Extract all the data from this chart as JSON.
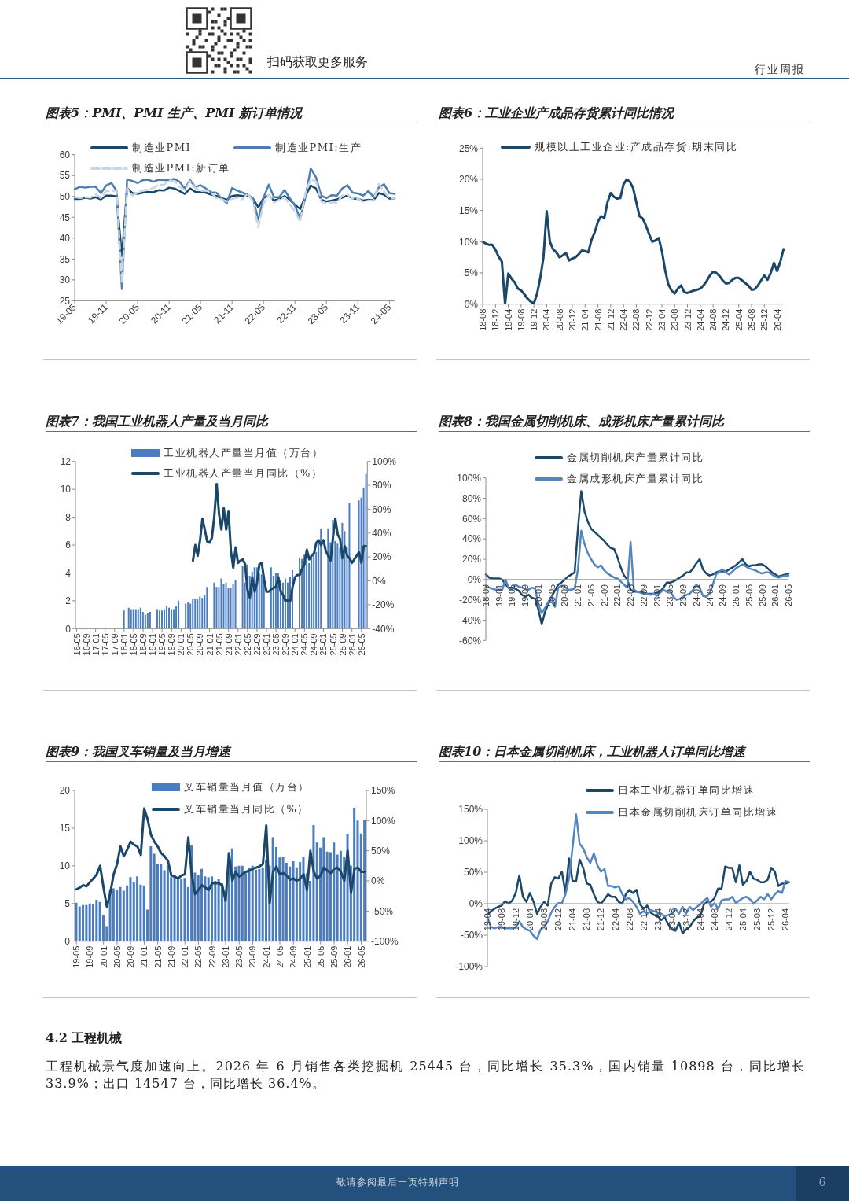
{
  "chart_data": [
    {
      "type": "other",
      "annotations": [
        "扫码获取更多服务",
        "行业周报"
      ]
    },
    {
      "type": "line",
      "title": "图表5：PMI、PMI 生产、PMI 新订单情况",
      "categories": [
        "19-05",
        null,
        null,
        null,
        null,
        null,
        "19-11",
        null,
        null,
        null,
        null,
        null,
        "20-05",
        null,
        null,
        null,
        null,
        null,
        "20-11",
        null,
        null,
        null,
        null,
        null,
        "21-05",
        null,
        null,
        null,
        null,
        null,
        "21-11",
        null,
        null,
        null,
        null,
        null,
        "22-05",
        null,
        null,
        null,
        null,
        null,
        "22-11",
        null,
        null,
        null,
        null,
        null,
        "23-05",
        null,
        null,
        null,
        null,
        null,
        "23-11",
        null,
        null,
        null,
        null,
        null,
        "24-05",
        null
      ],
      "series": [
        {
          "name": "制造业PMI",
          "color": "#1b4769",
          "values": [
            49.4,
            49.4,
            49.7,
            49.5,
            49.8,
            49.3,
            50.2,
            50.2,
            50.0,
            35.7,
            52.0,
            50.8,
            50.6,
            50.9,
            51.1,
            51.0,
            51.5,
            51.4,
            52.1,
            51.9,
            51.3,
            50.6,
            51.9,
            51.1,
            51.0,
            50.9,
            50.4,
            50.1,
            49.6,
            49.2,
            50.1,
            50.3,
            50.1,
            50.2,
            49.5,
            47.4,
            49.6,
            50.2,
            49.0,
            49.4,
            50.1,
            49.2,
            48.0,
            47.0,
            50.1,
            52.6,
            51.9,
            49.2,
            48.8,
            49.0,
            49.3,
            49.7,
            50.2,
            49.5,
            49.4,
            49.0,
            49.2,
            49.1,
            50.8,
            50.4,
            49.5,
            49.5
          ]
        },
        {
          "name": "制造业PMI:生产",
          "color": "#4e7db1",
          "values": [
            51.7,
            52.3,
            52.1,
            52.3,
            52.3,
            50.8,
            52.6,
            53.2,
            51.3,
            27.8,
            54.1,
            53.7,
            53.2,
            53.9,
            54.0,
            53.5,
            54.0,
            53.9,
            53.9,
            54.2,
            53.5,
            51.9,
            53.9,
            52.2,
            52.7,
            51.9,
            51.0,
            50.9,
            49.5,
            48.4,
            52.0,
            51.4,
            50.9,
            50.4,
            49.5,
            44.4,
            49.7,
            52.8,
            49.8,
            49.8,
            51.5,
            49.6,
            47.8,
            44.6,
            49.8,
            56.7,
            54.6,
            50.2,
            49.6,
            50.3,
            50.2,
            51.9,
            52.7,
            50.9,
            50.7,
            50.2,
            51.3,
            49.8,
            52.2,
            52.9,
            50.8,
            50.6
          ]
        },
        {
          "name": "制造业PMI:新订单",
          "color": "#c7d5e4",
          "line_style": "dashed",
          "values": [
            49.8,
            49.6,
            49.8,
            49.7,
            50.5,
            49.6,
            51.3,
            51.2,
            51.4,
            29.3,
            52.0,
            50.2,
            50.9,
            51.4,
            51.7,
            52.0,
            52.8,
            52.8,
            53.9,
            53.6,
            52.3,
            51.5,
            53.6,
            52.0,
            51.3,
            51.5,
            50.9,
            49.6,
            49.3,
            48.8,
            49.4,
            49.7,
            49.3,
            50.7,
            48.8,
            42.6,
            48.2,
            50.4,
            48.5,
            49.2,
            49.8,
            48.1,
            46.4,
            43.9,
            50.9,
            54.1,
            53.6,
            48.8,
            48.3,
            48.6,
            48.5,
            50.2,
            50.5,
            49.5,
            49.4,
            48.7,
            49.0,
            49.0,
            53.0,
            51.1,
            49.6,
            49.5
          ]
        }
      ],
      "ylim": [
        25,
        60
      ],
      "yticks": [
        25,
        30,
        35,
        40,
        45,
        50,
        55,
        60
      ],
      "legend": "top"
    },
    {
      "type": "line",
      "title": "图表6：工业企业产成品存货累计同比情况",
      "categories": [
        "18-08",
        null,
        null,
        null,
        "18-12",
        null,
        null,
        null,
        "19-04",
        null,
        null,
        null,
        "19-08",
        null,
        null,
        null,
        "19-12",
        null,
        null,
        null,
        "20-04",
        null,
        null,
        null,
        "20-08",
        null,
        null,
        null,
        "20-12",
        null,
        null,
        null,
        "21-04",
        null,
        null,
        null,
        "21-08",
        null,
        null,
        null,
        "21-12",
        null,
        null,
        null,
        "22-04",
        null,
        null,
        null,
        "22-08",
        null,
        null,
        null,
        "22-12",
        null,
        null,
        null,
        "23-04",
        null,
        null,
        null,
        "23-08",
        null,
        null,
        null,
        "23-12",
        null,
        null,
        null,
        "24-04",
        null,
        null,
        null,
        "24-08",
        null,
        null,
        null,
        "24-12",
        null,
        null,
        null,
        "25-04",
        null,
        null,
        null,
        "25-08",
        null,
        null,
        null,
        "25-12",
        null,
        null,
        null,
        "26-04",
        null,
        null
      ],
      "series": [
        {
          "name": "规模以上工业企业:产成品存货:期末同比",
          "color": "#1b4769",
          "values": [
            10.0,
            9.7,
            9.5,
            9.5,
            8.7,
            7.6,
            6.8,
            0,
            4.9,
            4.1,
            3.5,
            2.5,
            2.2,
            1.6,
            0.9,
            0.4,
            0.1,
            1.7,
            4.2,
            7.5,
            14.9,
            10.0,
            8.8,
            8.3,
            7.5,
            7.8,
            8.2,
            7.0,
            7.3,
            7.5,
            8.0,
            8.6,
            8.5,
            8.3,
            10.3,
            11.5,
            13.2,
            14.1,
            13.8,
            16.3,
            17.8,
            17.2,
            16.9,
            17.0,
            19.2,
            20.0,
            19.6,
            18.6,
            16.3,
            14.1,
            13.7,
            12.6,
            11.2,
            10.0,
            10.2,
            10.6,
            8.5,
            5.5,
            3.2,
            2.2,
            1.7,
            2.5,
            3.0,
            1.9,
            1.8,
            2.0,
            2.2,
            2.3,
            2.5,
            3.0,
            3.7,
            4.6,
            5.2,
            5.0,
            4.5,
            3.8,
            3.3,
            3.4,
            3.9,
            4.2,
            4.2,
            3.8,
            3.4,
            3.0,
            2.3,
            2.4,
            3.0,
            3.8,
            4.6,
            3.9,
            5.0,
            6.6,
            5.3,
            6.8,
            8.8
          ]
        }
      ],
      "ylim": [
        0,
        25
      ],
      "yticks": [
        {
          "value": 0,
          "label": "0%"
        },
        {
          "value": 5,
          "label": "5%"
        },
        {
          "value": 10,
          "label": "10%"
        },
        {
          "value": 15,
          "label": "15%"
        },
        {
          "value": 20,
          "label": "20%"
        },
        {
          "value": 25,
          "label": "25%"
        }
      ],
      "legend": "top"
    },
    {
      "type": "bar",
      "title": "图表7：我国工业机器人产量及当月同比",
      "categories": [
        "16-05",
        null,
        null,
        null,
        "16-09",
        null,
        null,
        null,
        "17-01",
        null,
        null,
        null,
        "17-05",
        null,
        null,
        null,
        "17-09",
        null,
        null,
        null,
        "18-01",
        null,
        null,
        null,
        "18-05",
        null,
        null,
        null,
        "18-09",
        null,
        null,
        null,
        "19-01",
        null,
        null,
        null,
        "19-05",
        null,
        null,
        null,
        "19-09",
        null,
        null,
        null,
        "20-01",
        null,
        null,
        null,
        "20-05",
        null,
        null,
        null,
        "20-09",
        null,
        null,
        null,
        "21-01",
        null,
        null,
        null,
        "21-05",
        null,
        null,
        null,
        "21-09",
        null,
        null,
        null,
        "22-01",
        null,
        null,
        null,
        "22-05",
        null,
        null,
        null,
        "22-09",
        null,
        null,
        null,
        "23-01",
        null,
        null,
        null,
        "23-05",
        null,
        null,
        null,
        "23-09",
        null,
        null,
        null,
        "24-01",
        null,
        null,
        null,
        "24-05",
        null,
        null,
        null,
        "24-09",
        null,
        null,
        null,
        "25-01",
        null,
        null,
        null,
        "25-05",
        null,
        null,
        null,
        "25-09",
        null,
        null,
        null,
        "26-01",
        null,
        null,
        null,
        "26-05",
        null,
        null
      ],
      "series": [
        {
          "name": "工业机器人产量当月值（万台）",
          "color": "#4a7cbf",
          "values": [
            null,
            null,
            null,
            null,
            null,
            null,
            null,
            null,
            null,
            null,
            null,
            null,
            null,
            null,
            null,
            null,
            null,
            null,
            null,
            null,
            1.3,
            null,
            1.5,
            1.4,
            1.4,
            1.4,
            1.4,
            1.5,
            1.2,
            1.0,
            1.1,
            1.2,
            null,
            null,
            1.4,
            1.3,
            1.3,
            1.4,
            1.6,
            1.5,
            1.4,
            1.4,
            1.6,
            2.0,
            null,
            null,
            1.8,
            1.9,
            1.8,
            2.1,
            2.1,
            2.1,
            2.3,
            2.2,
            2.4,
            3.0,
            null,
            null,
            3.3,
            3.0,
            3.0,
            3.6,
            3.2,
            3.3,
            2.9,
            2.9,
            3.2,
            3.5,
            null,
            null,
            4.5,
            3.3,
            4.6,
            3.8,
            4.1,
            4.4,
            4.4,
            4.0,
            3.9,
            3.8,
            null,
            null,
            4.4,
            3.8,
            4.0,
            4.0,
            3.5,
            3.3,
            3.6,
            3.3,
            3.7,
            4.2,
            null,
            null,
            5.1,
            5.0,
            5.3,
            4.9,
            4.7,
            5.1,
            5.3,
            5.5,
            6.3,
            7.2,
            null,
            null,
            7.2,
            6.2,
            7.8,
            6.3,
            6.1,
            5.8,
            7.6,
            7.0,
            5.9,
            9.0,
            null,
            null,
            null,
            9.2,
            9.4,
            10.1,
            11.1
          ]
        },
        {
          "name": "工业机器人产量当月同比（%）",
          "type": "line",
          "axis": "y2",
          "color": "#1b4769",
          "values": [
            null,
            null,
            null,
            null,
            null,
            null,
            null,
            null,
            null,
            null,
            null,
            null,
            null,
            null,
            null,
            null,
            null,
            null,
            null,
            null,
            null,
            null,
            null,
            null,
            null,
            null,
            null,
            null,
            null,
            null,
            null,
            null,
            null,
            null,
            null,
            null,
            null,
            null,
            null,
            null,
            null,
            null,
            null,
            null,
            null,
            null,
            null,
            null,
            null,
            17,
            30,
            21,
            34,
            52,
            43,
            33,
            32,
            36,
            54,
            81,
            56,
            43,
            61,
            43,
            58,
            25,
            11,
            28,
            15,
            17,
            18,
            14,
            -8,
            -14,
            3,
            -9,
            -2,
            14,
            15,
            1,
            -9,
            -9,
            -7,
            -6,
            -5,
            3,
            -9,
            -12,
            -17,
            -16,
            -17,
            -5,
            3,
            5,
            5,
            10,
            14,
            26,
            18,
            21,
            23,
            32,
            34,
            30,
            34,
            25,
            21,
            17,
            36,
            52,
            39,
            35,
            19,
            29,
            21,
            19,
            15,
            18,
            21,
            24,
            15,
            29,
            29
          ]
        }
      ],
      "ylim": [
        0,
        12
      ],
      "yticks": [
        0,
        2,
        4,
        6,
        8,
        10,
        12
      ],
      "y2lim": [
        -40,
        100
      ],
      "y2ticks": [
        {
          "value": -40,
          "label": "-40%"
        },
        {
          "value": -20,
          "label": "-20%"
        },
        {
          "value": 0,
          "label": "0%"
        },
        {
          "value": 20,
          "label": "20%"
        },
        {
          "value": 40,
          "label": "40%"
        },
        {
          "value": 60,
          "label": "60%"
        },
        {
          "value": 80,
          "label": "80%"
        },
        {
          "value": 100,
          "label": "100%"
        }
      ],
      "legend": "top"
    },
    {
      "type": "line",
      "title": "图表8：我国金属切削机床、成形机床产量累计同比",
      "categories": [
        "18-09",
        null,
        null,
        null,
        "19-01",
        null,
        null,
        null,
        "19-05",
        null,
        null,
        null,
        "19-09",
        null,
        null,
        null,
        "20-01",
        null,
        null,
        null,
        "20-05",
        null,
        null,
        null,
        "20-09",
        null,
        null,
        null,
        "21-01",
        null,
        null,
        null,
        "21-05",
        null,
        null,
        null,
        "21-09",
        null,
        null,
        null,
        "22-01",
        null,
        null,
        null,
        "22-05",
        null,
        null,
        null,
        "22-09",
        null,
        null,
        null,
        "23-01",
        null,
        null,
        null,
        "23-05",
        null,
        null,
        null,
        "23-09",
        null,
        null,
        null,
        "24-01",
        null,
        null,
        null,
        "24-05",
        null,
        null,
        null,
        "24-09",
        null,
        null,
        null,
        "25-01",
        null,
        null,
        null,
        "25-05",
        null,
        null,
        null,
        "25-09",
        null,
        null,
        null,
        "26-01",
        null,
        null,
        null,
        "26-05"
      ],
      "series": [
        {
          "name": "金属切削机床产量累计同比",
          "color": "#1b4769",
          "values": [
            5,
            2,
            1,
            1,
            1,
            0,
            -5,
            -8,
            -8,
            -9,
            -11,
            -15,
            -17,
            -15,
            -18,
            -19,
            -30,
            -44,
            -32,
            -24,
            -17,
            -11,
            -5,
            -3,
            0,
            3,
            5,
            7,
            50,
            87,
            67,
            57,
            50,
            47,
            44,
            41,
            38,
            34,
            31,
            30,
            22,
            12,
            4,
            0,
            -10,
            -12,
            -12,
            -12,
            -13,
            -14,
            -14,
            -14,
            -13,
            -12,
            -8,
            -3,
            -3,
            -2,
            0,
            2,
            4,
            7,
            7,
            11,
            16,
            20,
            10,
            6,
            4,
            5,
            7,
            8,
            8,
            8,
            10,
            12,
            14,
            17,
            20,
            15,
            13,
            14,
            14,
            15,
            15,
            13,
            10,
            7,
            5,
            3,
            4,
            5,
            6
          ]
        },
        {
          "name": "金属成形机床产量累计同比",
          "color": "#5585bf",
          "values": [
            -7,
            -8,
            -9,
            -10,
            -10,
            -10,
            0,
            -9,
            -10,
            -5,
            -7,
            -8,
            -9,
            -10,
            -8,
            -9,
            -25,
            -33,
            -28,
            -22,
            -17,
            -27,
            -8,
            -6,
            -7,
            -10,
            -10,
            -9,
            10,
            48,
            35,
            26,
            20,
            15,
            12,
            14,
            9,
            6,
            4,
            2,
            1,
            -2,
            -5,
            -8,
            37,
            -10,
            -12,
            -13,
            -14,
            -14,
            -15,
            -14,
            -16,
            -13,
            -10,
            -12,
            -11,
            -17,
            -20,
            -19,
            -17,
            -15,
            -14,
            -10,
            -5,
            -8,
            -16,
            -17,
            -14,
            -5,
            5,
            8,
            10,
            7,
            5,
            8,
            11,
            13,
            15,
            13,
            11,
            10,
            9,
            7,
            6,
            7,
            7,
            5,
            3,
            2,
            3,
            4,
            4
          ]
        }
      ],
      "ylim": [
        -60,
        100
      ],
      "yticks": [
        {
          "value": -60,
          "label": "-60%"
        },
        {
          "value": -40,
          "label": "-40%"
        },
        {
          "value": -20,
          "label": "-20%"
        },
        {
          "value": 0,
          "label": "0%"
        },
        {
          "value": 20,
          "label": "20%"
        },
        {
          "value": 40,
          "label": "40%"
        },
        {
          "value": 60,
          "label": "60%"
        },
        {
          "value": 80,
          "label": "80%"
        },
        {
          "value": 100,
          "label": "100%"
        }
      ],
      "legend": "top"
    },
    {
      "type": "bar",
      "title": "图表9：我国叉车销量及当月增速",
      "categories": [
        "19-05",
        null,
        null,
        null,
        "19-09",
        null,
        null,
        null,
        "20-01",
        null,
        null,
        null,
        "20-05",
        null,
        null,
        null,
        "20-09",
        null,
        null,
        null,
        "21-01",
        null,
        null,
        null,
        "21-05",
        null,
        null,
        null,
        "21-09",
        null,
        null,
        null,
        "22-01",
        null,
        null,
        null,
        "22-05",
        null,
        null,
        null,
        "22-09",
        null,
        null,
        null,
        "23-01",
        null,
        null,
        null,
        "23-05",
        null,
        null,
        null,
        "23-09",
        null,
        null,
        null,
        "24-01",
        null,
        null,
        null,
        "24-05",
        null,
        null,
        null,
        "24-09",
        null,
        null,
        null,
        "25-01",
        null,
        null,
        null,
        "25-05",
        null,
        null,
        null,
        "25-09",
        null,
        null,
        null,
        "26-01",
        null,
        null,
        null,
        "26-05",
        null
      ],
      "series": [
        {
          "name": "叉车销量当月值（万台）",
          "color": "#4a7cbf",
          "values": [
            5.1,
            4.6,
            4.8,
            4.8,
            5.0,
            4.9,
            5.5,
            5.2,
            3.5,
            2.0,
            6.8,
            7.0,
            6.8,
            7.2,
            6.7,
            7.4,
            8.5,
            7.8,
            8.6,
            7.5,
            7.4,
            4.2,
            12.6,
            11.6,
            10.3,
            10.3,
            9.4,
            10.0,
            8.5,
            8.8,
            8.2,
            8.3,
            8.4,
            7.2,
            12.7,
            9.1,
            8.8,
            9.6,
            8.6,
            8.5,
            8.6,
            8.0,
            8.2,
            7.7,
            6.5,
            11.6,
            12.3,
            9.9,
            10.0,
            10.0,
            9.0,
            9.7,
            10.0,
            9.5,
            9.6,
            9.8,
            10.8,
            10.0,
            13.8,
            12.5,
            11.1,
            11.2,
            10.4,
            9.9,
            10.6,
            9.8,
            10.5,
            11.2,
            9.0,
            8.0,
            15.4,
            13.1,
            12.4,
            13.8,
            11.9,
            11.8,
            13.1,
            11.5,
            12.0,
            11.2,
            14.2,
            10.0,
            17.7,
            16.0,
            14.3,
            16.1
          ]
        },
        {
          "name": "叉车销量当月同比（%）",
          "type": "line",
          "axis": "y2",
          "color": "#1b4769",
          "values": [
            -14,
            -11,
            -7,
            -9,
            -2,
            4,
            11,
            25,
            -11,
            -43,
            -20,
            11,
            28,
            57,
            41,
            52,
            65,
            60,
            57,
            43,
            120,
            102,
            76,
            65,
            57,
            46,
            41,
            33,
            9,
            7,
            4,
            9,
            11,
            72,
            11,
            -22,
            -15,
            -7,
            -11,
            -15,
            -4,
            -4,
            -4,
            -7,
            -33,
            46,
            0,
            15,
            7,
            11,
            15,
            17,
            20,
            22,
            24,
            28,
            92,
            -37,
            15,
            24,
            11,
            13,
            9,
            2,
            4,
            0,
            4,
            11,
            -15,
            50,
            15,
            4,
            9,
            22,
            17,
            13,
            20,
            22,
            15,
            0,
            50,
            -20,
            20,
            22,
            15,
            15
          ]
        }
      ],
      "ylim": [
        0,
        20
      ],
      "yticks": [
        0,
        5,
        10,
        15,
        20
      ],
      "y2lim": [
        -100,
        150
      ],
      "y2ticks": [
        {
          "value": -100,
          "label": "-100%"
        },
        {
          "value": -50,
          "label": "-50%"
        },
        {
          "value": 0,
          "label": "0%"
        },
        {
          "value": 50,
          "label": "50%"
        },
        {
          "value": 100,
          "label": "100%"
        },
        {
          "value": 150,
          "label": "150%"
        }
      ],
      "legend": "top"
    },
    {
      "type": "line",
      "title": "图表10：日本金属切削机床，工业机器人订单同比增速",
      "categories": [
        "19-04",
        null,
        null,
        null,
        "19-08",
        null,
        null,
        null,
        "19-12",
        null,
        null,
        null,
        "20-04",
        null,
        null,
        null,
        "20-08",
        null,
        null,
        null,
        "20-12",
        null,
        null,
        null,
        "21-04",
        null,
        null,
        null,
        "21-08",
        null,
        null,
        null,
        "21-12",
        null,
        null,
        null,
        "22-04",
        null,
        null,
        null,
        "22-08",
        null,
        null,
        null,
        "22-12",
        null,
        null,
        null,
        "23-04",
        null,
        null,
        null,
        "23-08",
        null,
        null,
        null,
        "23-12",
        null,
        null,
        null,
        "24-04",
        null,
        null,
        null,
        "24-08",
        null,
        null,
        null,
        "24-12",
        null,
        null,
        null,
        "25-04",
        null,
        null,
        null,
        "25-08",
        null,
        null,
        null,
        "25-12",
        null,
        null,
        null,
        "26-04",
        null
      ],
      "series": [
        {
          "name": "日本工业机器订单同比增速",
          "color": "#1b4769",
          "values": [
            -18,
            -12,
            -8,
            -5,
            -3,
            4,
            0,
            5,
            17,
            45,
            11,
            3,
            17,
            3,
            -16,
            -5,
            3,
            -3,
            32,
            42,
            40,
            51,
            17,
            72,
            36,
            36,
            70,
            57,
            32,
            30,
            15,
            3,
            0,
            7,
            15,
            11,
            11,
            3,
            0,
            15,
            22,
            17,
            22,
            -1,
            -8,
            -3,
            -14,
            -18,
            -20,
            -26,
            -22,
            -33,
            -41,
            -43,
            -30,
            -47,
            -41,
            -37,
            -28,
            -22,
            -20,
            -1,
            3,
            3,
            9,
            24,
            24,
            59,
            57,
            57,
            34,
            61,
            30,
            36,
            51,
            40,
            38,
            34,
            34,
            38,
            57,
            51,
            28,
            32,
            32,
            34
          ]
        },
        {
          "name": "日本金属切削机床订单同比增速",
          "color": "#5585bf",
          "values": [
            -22,
            -37,
            -39,
            -37,
            -37,
            -39,
            -39,
            -39,
            -37,
            -28,
            -37,
            -41,
            -43,
            -51,
            -56,
            -41,
            -37,
            -28,
            -14,
            -5,
            1,
            1,
            15,
            40,
            90,
            142,
            95,
            88,
            74,
            65,
            80,
            61,
            51,
            55,
            28,
            28,
            26,
            28,
            15,
            7,
            9,
            3,
            -5,
            -16,
            -12,
            -16,
            -10,
            -12,
            -14,
            -16,
            -20,
            -18,
            -16,
            -8,
            -16,
            -5,
            -16,
            -5,
            -10,
            -5,
            -1,
            5,
            9,
            -5,
            1,
            -8,
            5,
            7,
            7,
            11,
            1,
            5,
            9,
            11,
            7,
            0,
            5,
            11,
            7,
            15,
            7,
            15,
            20,
            17,
            36,
            34
          ]
        }
      ],
      "ylim": [
        -100,
        150
      ],
      "yticks": [
        {
          "value": -100,
          "label": "-100%"
        },
        {
          "value": -50,
          "label": "-50%"
        },
        {
          "value": 0,
          "label": "0%"
        },
        {
          "value": 50,
          "label": "50%"
        },
        {
          "value": 100,
          "label": "100%"
        },
        {
          "value": 150,
          "label": "150%"
        }
      ],
      "legend": "top"
    },
    {
      "type": "other",
      "title": "4.2 工程机械",
      "annotations": [
        "工程机械景气度加速向上。2026 年 6 月销售各类挖掘机 25445 台，同比增长 35.3%，国内销量 10898 台，同比增长 33.9%；出口 14547 台，同比增长 36.4%。",
        "敬请参阅最后一页特别声明",
        "6"
      ]
    }
  ]
}
